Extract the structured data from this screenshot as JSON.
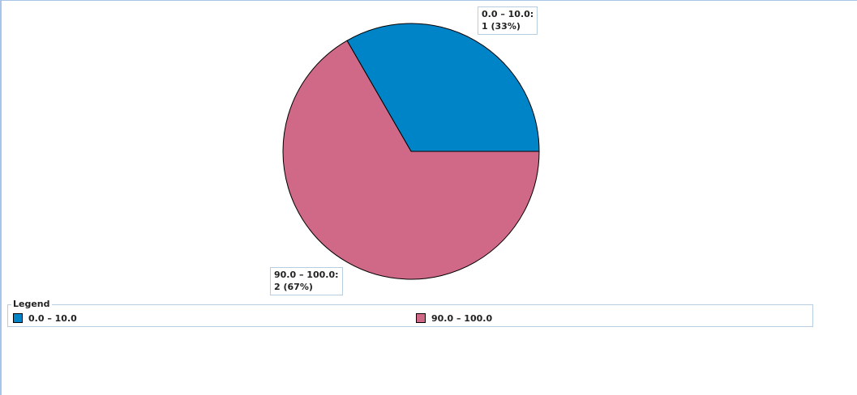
{
  "chart_data": {
    "type": "pie",
    "slices": [
      {
        "category": "0.0 – 10.0",
        "value": 1,
        "percent": "33%",
        "color": "#0084c8",
        "label_line1": "0.0 – 10.0:",
        "label_line2": "1 (33%)"
      },
      {
        "category": "90.0 – 100.0",
        "value": 2,
        "percent": "67%",
        "color": "#cf6987",
        "label_line1": "90.0 – 100.0:",
        "label_line2": "2 (67%)"
      }
    ],
    "legend": {
      "title": "Legend",
      "placement": "bottom",
      "items": [
        "0.0 – 10.0",
        "90.0 – 100.0"
      ]
    }
  }
}
